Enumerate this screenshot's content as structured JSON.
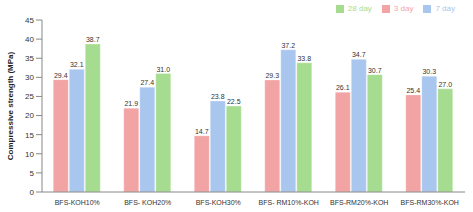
{
  "chart_data": {
    "type": "bar",
    "y_label": "Compressive strength (MPa)",
    "categories": [
      "BFS-KOH10%",
      "BFS- KOH20%",
      "BFS-KOH30%",
      "BFS- RM10%-KOH",
      "BFS-RM20%-KOH",
      "BFS-RM30%-KOH"
    ],
    "series": [
      {
        "name": "3 day",
        "color": "#f2a3a3",
        "values": [
          29.4,
          21.9,
          14.7,
          29.3,
          26.1,
          25.4
        ],
        "value_labels": [
          "29.4",
          "21.9",
          "14.7",
          "29.3",
          "26.1",
          "25.4"
        ]
      },
      {
        "name": "7 day",
        "color": "#a9c6ef",
        "values": [
          32.1,
          27.4,
          23.8,
          37.2,
          34.7,
          30.3
        ],
        "value_labels": [
          "32.1",
          "27.4",
          "23.8",
          "37.2",
          "34.7",
          "30.3"
        ]
      },
      {
        "name": "28 day",
        "color": "#a6dc8f",
        "values": [
          38.7,
          31.0,
          22.5,
          33.8,
          30.7,
          27.0
        ],
        "value_labels": [
          "38.7",
          "31.0",
          "22.5",
          "33.8",
          "30.7",
          "27.0"
        ]
      }
    ],
    "ylim": [
      0,
      45
    ],
    "yticks": [
      0,
      5,
      10,
      15,
      20,
      25,
      30,
      35,
      40,
      45
    ],
    "grid": false,
    "legend": "top-right",
    "data_labels": true
  }
}
